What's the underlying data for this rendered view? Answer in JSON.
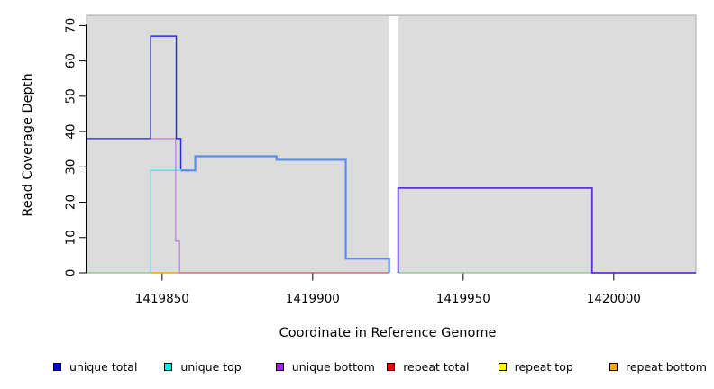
{
  "chart_data": {
    "type": "line",
    "subtype": "step-coverage-plot",
    "title": "",
    "xlabel": "Coordinate in Reference Genome",
    "ylabel": "Read Coverage Depth",
    "xlim": [
      1419824.9,
      1420027.3
    ],
    "ylim": [
      0,
      72.9
    ],
    "x_ticks": [
      "1419850",
      "1419900",
      "1419950",
      "1420000"
    ],
    "x_tick_values": [
      1419850,
      1419900,
      1419950,
      1420000
    ],
    "y_ticks": [
      "0",
      "10",
      "20",
      "30",
      "40",
      "50",
      "60",
      "70"
    ],
    "y_tick_values": [
      0,
      10,
      20,
      30,
      40,
      50,
      60,
      70
    ],
    "grid": false,
    "plot_bg_color": "#dcdcdc",
    "plot_border_color": "#a8a8a8",
    "axis_color": "#000000",
    "gap_region": {
      "x_start": 1419925.4,
      "x_end": 1419928.4,
      "color": "#ffffff"
    },
    "legend_position": "bottom",
    "legend": [
      {
        "label": "unique total",
        "color": "#0000f0"
      },
      {
        "label": "unique top",
        "color": "#00eeee"
      },
      {
        "label": "unique bottom",
        "color": "#a021f0"
      },
      {
        "label": "repeat total",
        "color": "#f00000"
      },
      {
        "label": "repeat top",
        "color": "#ffff00"
      },
      {
        "label": "repeat bottom",
        "color": "#ffa500"
      }
    ],
    "series": [
      {
        "name": "zero-baseline-green-left",
        "color": "#7cc87c",
        "width": 1.2,
        "points": [
          [
            1419824.9,
            0
          ],
          [
            1419846.2,
            0
          ]
        ]
      },
      {
        "name": "zero-baseline-orange",
        "color": "#ffa500",
        "width": 1.5,
        "points": [
          [
            1419846.2,
            0
          ],
          [
            1419855.6,
            0
          ]
        ]
      },
      {
        "name": "zero-baseline-crimson",
        "color": "#d94a6e",
        "width": 1.2,
        "points": [
          [
            1419855.6,
            0
          ],
          [
            1419925.4,
            0
          ]
        ]
      },
      {
        "name": "unique-top-step",
        "color": "#3fdfe6",
        "width": 1.3,
        "points": [
          [
            1419846.2,
            0
          ],
          [
            1419846.2,
            29
          ],
          [
            1419860.5,
            29
          ]
        ]
      },
      {
        "name": "unique-bottom-step",
        "color": "#c77deb",
        "width": 1.3,
        "points": [
          [
            1419846.2,
            38
          ],
          [
            1419854.5,
            38
          ],
          [
            1419854.5,
            9
          ],
          [
            1419855.8,
            9
          ],
          [
            1419855.8,
            0
          ]
        ]
      },
      {
        "name": "unique-total-bottom-overlap-left",
        "color": "#4838e8",
        "width": 1.5,
        "points": [
          [
            1419824.9,
            38
          ],
          [
            1419846.2,
            38
          ]
        ]
      },
      {
        "name": "unique-total-peak",
        "color": "#2b2bf0",
        "width": 1.5,
        "points": [
          [
            1419846.2,
            38
          ],
          [
            1419846.2,
            67
          ],
          [
            1419854.7,
            67
          ],
          [
            1419854.7,
            38
          ],
          [
            1419856.2,
            38
          ],
          [
            1419856.2,
            29.3
          ]
        ]
      },
      {
        "name": "unique-total-top-overlap",
        "color": "#5b8def",
        "width": 2.2,
        "points": [
          [
            1419856.2,
            29
          ],
          [
            1419861,
            29
          ],
          [
            1419861,
            33
          ],
          [
            1419888,
            33
          ],
          [
            1419888,
            32
          ],
          [
            1419911,
            32
          ],
          [
            1419911,
            4
          ],
          [
            1419925.4,
            4
          ],
          [
            1419925.4,
            0
          ]
        ]
      },
      {
        "name": "zero-baseline-green-right",
        "color": "#7cc87c",
        "width": 1.2,
        "points": [
          [
            1419928.4,
            0
          ],
          [
            1419992.8,
            0
          ]
        ]
      },
      {
        "name": "unique-total-bottom-overlap-right",
        "color": "#5832e2",
        "width": 1.8,
        "points": [
          [
            1419928.4,
            0
          ],
          [
            1419928.4,
            24
          ],
          [
            1419992.8,
            24
          ],
          [
            1419992.8,
            0
          ],
          [
            1420027.3,
            0
          ]
        ]
      }
    ]
  }
}
